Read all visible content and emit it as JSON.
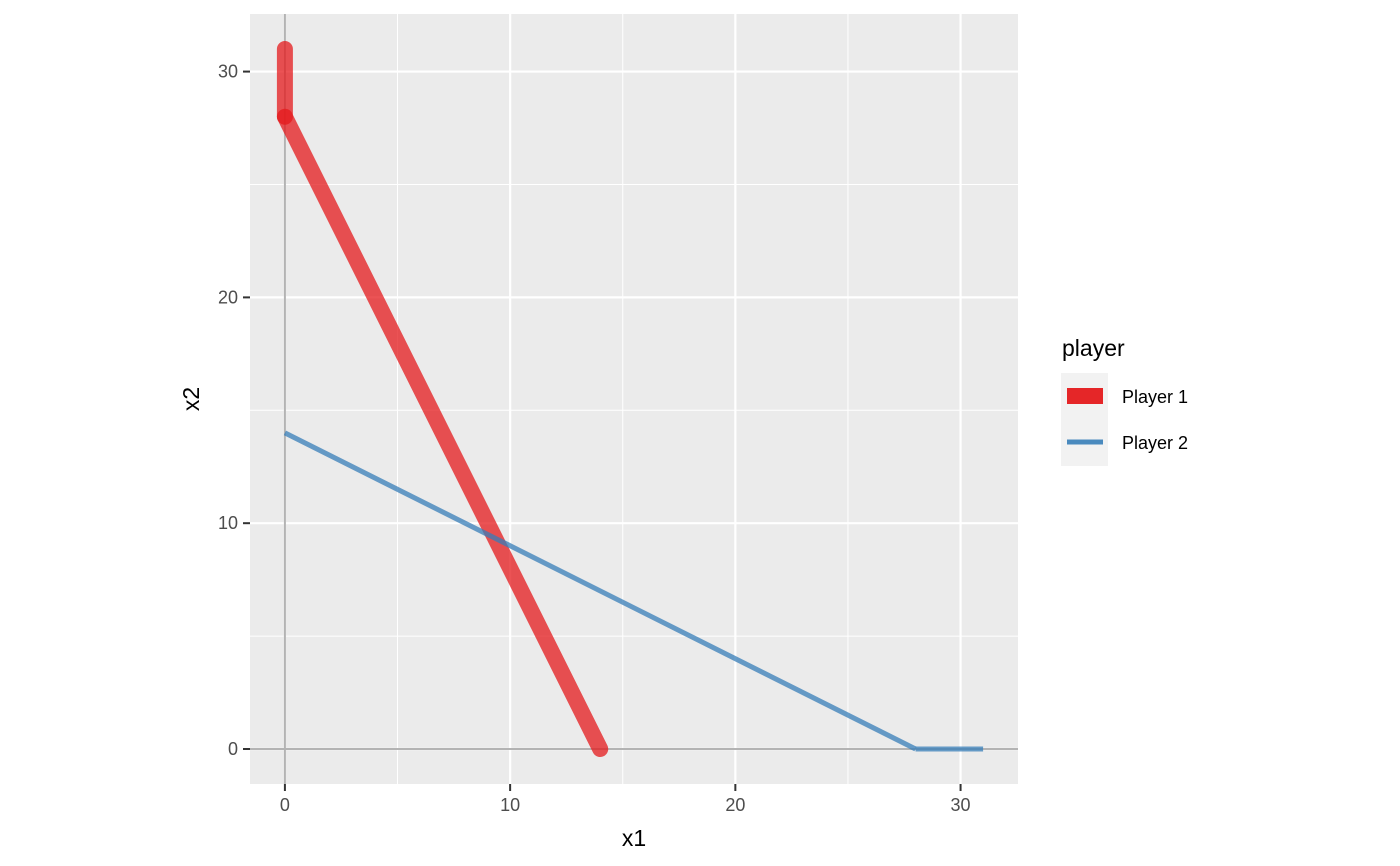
{
  "chart_data": {
    "type": "line",
    "title": "",
    "xlabel": "x1",
    "ylabel": "x2",
    "xlim": [
      -1.55,
      32.55
    ],
    "ylim": [
      -1.55,
      32.55
    ],
    "x_ticks": [
      0,
      10,
      20,
      30
    ],
    "y_ticks": [
      0,
      10,
      20,
      30
    ],
    "x_minor_ticks": [
      5,
      15,
      25
    ],
    "y_minor_ticks": [
      5,
      15,
      25
    ],
    "grid": true,
    "reference_lines": {
      "x": 0,
      "y": 0
    },
    "legend": {
      "title": "player",
      "position": "right"
    },
    "series": [
      {
        "name": "Player 1",
        "color": "#E41A1C",
        "segments": [
          [
            [
              0,
              31
            ],
            [
              0,
              28
            ]
          ],
          [
            [
              0,
              28
            ],
            [
              14,
              0
            ]
          ]
        ]
      },
      {
        "name": "Player 2",
        "color": "#377EB8",
        "segments": [
          [
            [
              0,
              14
            ],
            [
              28,
              0
            ]
          ],
          [
            [
              28,
              0
            ],
            [
              31,
              0
            ]
          ]
        ]
      }
    ]
  }
}
